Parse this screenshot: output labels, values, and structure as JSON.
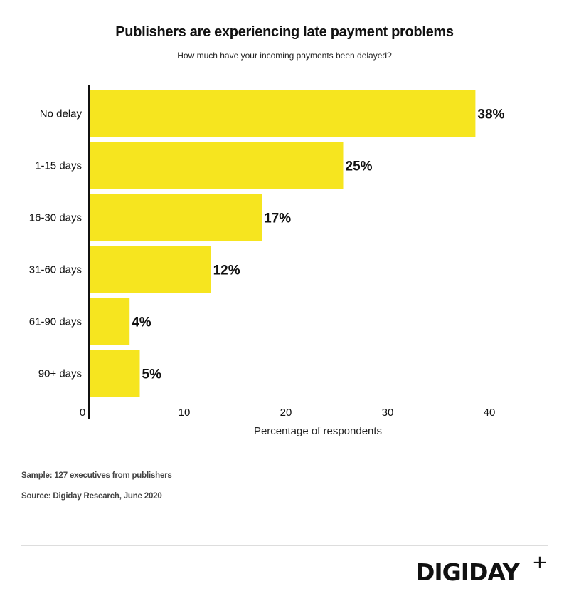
{
  "chart_data": {
    "type": "bar",
    "orientation": "horizontal",
    "title": "Publishers are experiencing late payment problems",
    "subtitle": "How much have your incoming payments been delayed?",
    "categories": [
      "No delay",
      "1-15 days",
      "16-30 days",
      "31-60 days",
      "61-90 days",
      "90+ days"
    ],
    "values": [
      38,
      25,
      17,
      12,
      4,
      5
    ],
    "data_labels": [
      "38%",
      "25%",
      "17%",
      "12%",
      "4%",
      "5%"
    ],
    "xlabel": "Percentage of respondents",
    "ylabel": "",
    "xlim": [
      0,
      40
    ],
    "xticks": [
      0,
      10,
      20,
      30,
      40
    ],
    "grid": false,
    "bar_color": "#F6E51F"
  },
  "footer": {
    "sample": "Sample: 127 executives from publishers",
    "source": "Source: Digiday Research, June 2020",
    "logo": "DIGIDAY",
    "logo_plus": "+"
  }
}
